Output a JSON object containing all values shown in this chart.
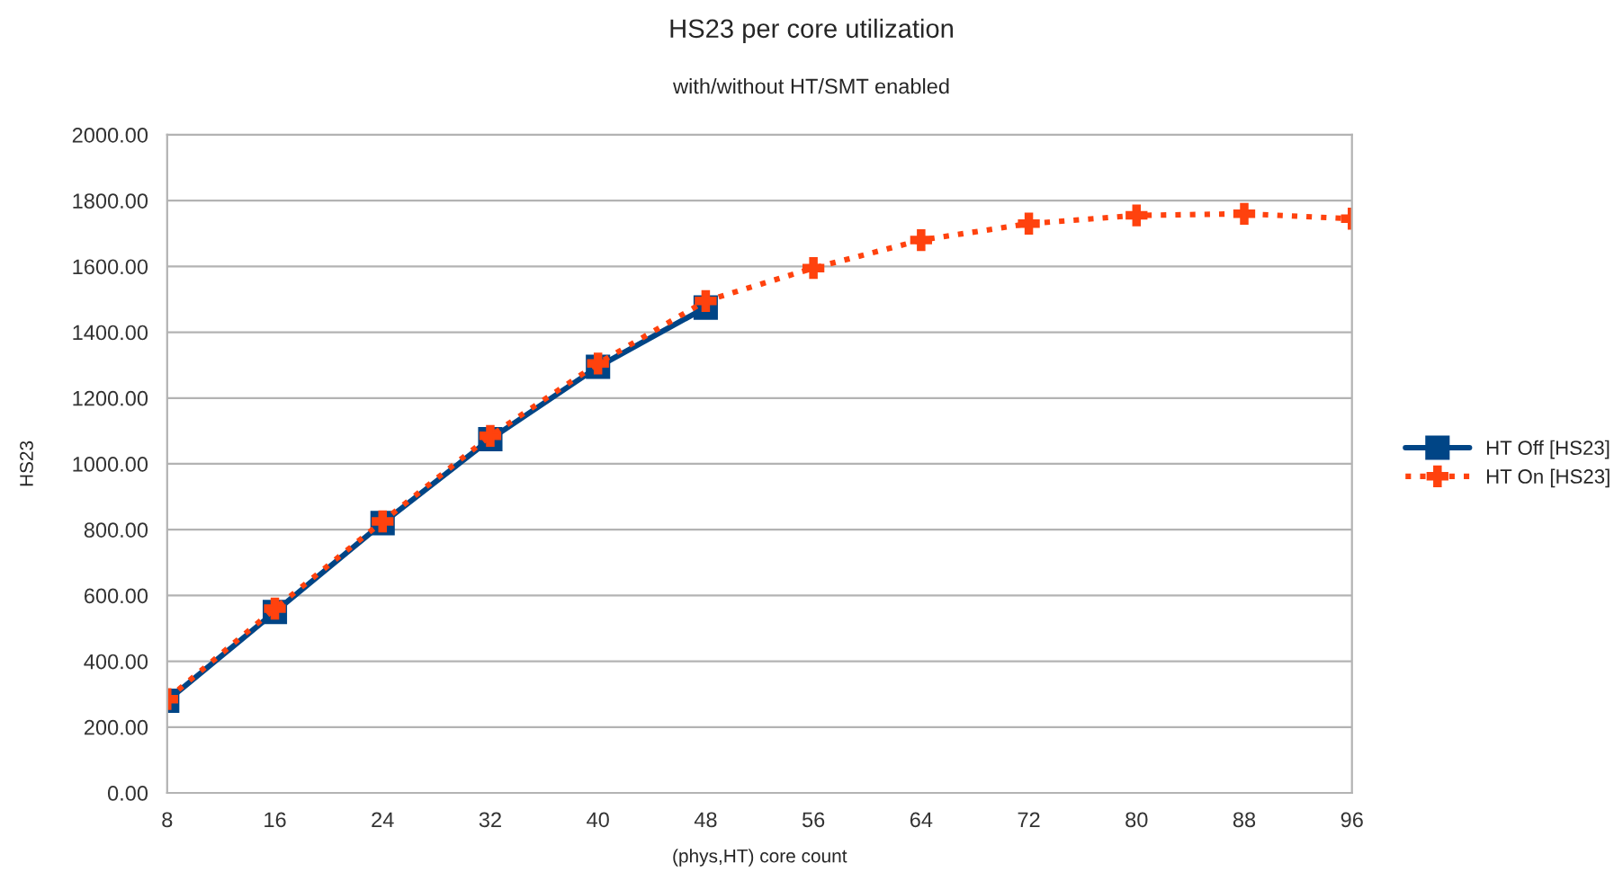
{
  "chart_data": {
    "type": "line",
    "title": "HS23 per core utilization",
    "subtitle": "with/without HT/SMT enabled",
    "xlabel": "(phys,HT) core count",
    "ylabel": "HS23",
    "x": [
      8,
      16,
      24,
      32,
      40,
      48,
      56,
      64,
      72,
      80,
      88,
      96
    ],
    "series": [
      {
        "name": "HT Off [HS23]",
        "color": "#004586",
        "marker": "square",
        "line_style": "solid",
        "values": [
          280,
          550,
          820,
          1075,
          1295,
          1475,
          null,
          null,
          null,
          null,
          null,
          null
        ]
      },
      {
        "name": "HT On [HS23]",
        "color": "#ff420e",
        "marker": "cross",
        "line_style": "dotted",
        "values": [
          285,
          560,
          825,
          1085,
          1305,
          1495,
          1595,
          1680,
          1730,
          1755,
          1760,
          1745
        ]
      }
    ],
    "xlim": [
      8,
      96
    ],
    "xticks": [
      8,
      16,
      24,
      32,
      40,
      48,
      56,
      64,
      72,
      80,
      88,
      96
    ],
    "ylim": [
      0,
      2000
    ],
    "yticks": [
      {
        "value": 0,
        "label": "0.00"
      },
      {
        "value": 200,
        "label": "200.00"
      },
      {
        "value": 400,
        "label": "400.00"
      },
      {
        "value": 600,
        "label": "600.00"
      },
      {
        "value": 800,
        "label": "800.00"
      },
      {
        "value": 1000,
        "label": "1000.00"
      },
      {
        "value": 1200,
        "label": "1200.00"
      },
      {
        "value": 1400,
        "label": "1400.00"
      },
      {
        "value": 1600,
        "label": "1600.00"
      },
      {
        "value": 1800,
        "label": "1800.00"
      },
      {
        "value": 2000,
        "label": "2000.00"
      }
    ],
    "grid": "y",
    "legend": "right"
  }
}
